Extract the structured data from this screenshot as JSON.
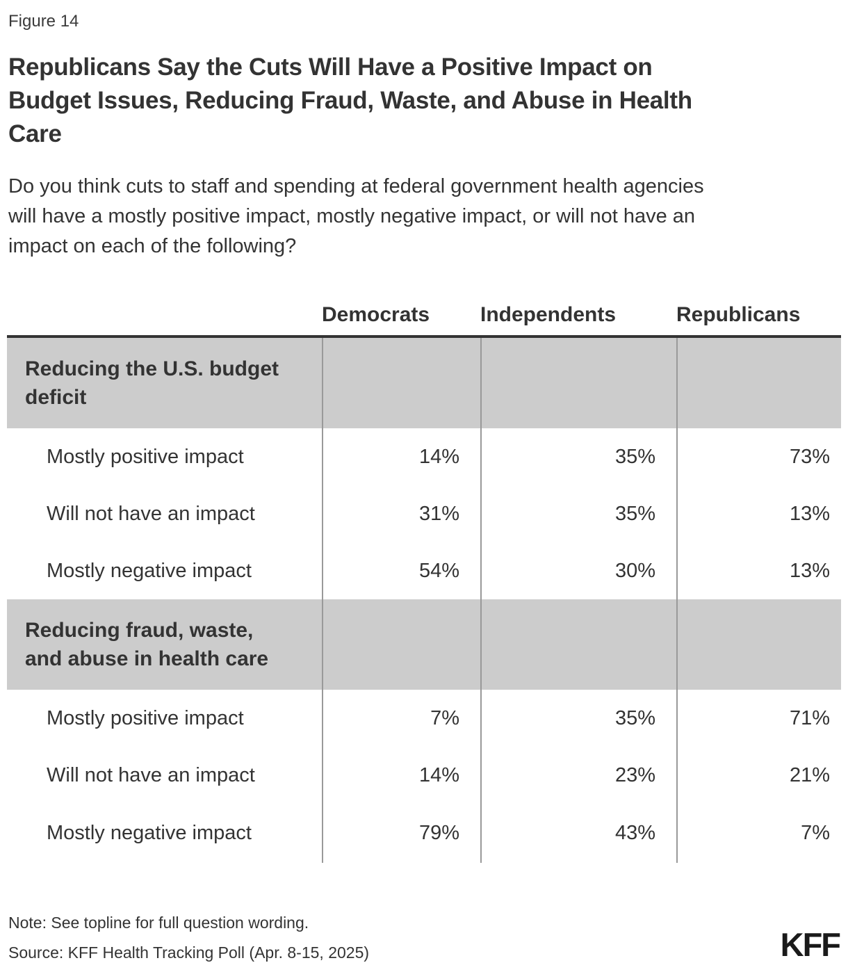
{
  "figure_label": "Figure 14",
  "title": "Republicans Say the Cuts Will Have a Positive Impact on\nBudget Issues, Reducing Fraud, Waste, and Abuse in Health\nCare",
  "subtitle": "Do you think cuts to staff and spending at federal government health agencies\nwill have a mostly positive impact, mostly negative impact, or will not have an\nimpact on each of the following?",
  "table": {
    "columns": [
      "Democrats",
      "Independents",
      "Republicans"
    ],
    "sections": [
      {
        "header": "Reducing the U.S. budget\ndeficit",
        "rows": [
          {
            "label": "Mostly positive impact",
            "values": [
              "14%",
              "35%",
              "73%"
            ]
          },
          {
            "label": "Will not have an impact",
            "values": [
              "31%",
              "35%",
              "13%"
            ]
          },
          {
            "label": "Mostly negative impact",
            "values": [
              "54%",
              "30%",
              "13%"
            ]
          }
        ]
      },
      {
        "header": "Reducing fraud, waste,\nand abuse in health care",
        "rows": [
          {
            "label": "Mostly positive impact",
            "values": [
              "7%",
              "35%",
              "71%"
            ]
          },
          {
            "label": "Will not have an impact",
            "values": [
              "14%",
              "23%",
              "21%"
            ]
          },
          {
            "label": "Mostly negative impact",
            "values": [
              "79%",
              "43%",
              "7%"
            ]
          }
        ]
      }
    ]
  },
  "note": "Note: See topline for full question wording.",
  "source": "Source: KFF Health Tracking Poll (Apr. 8-15, 2025)",
  "logo_text": "KFF",
  "colors": {
    "section_bg": "#cccccc",
    "divider": "#999999",
    "top_rule": "#333333",
    "text": "#333333",
    "logo": "#1a1a1a"
  },
  "chart_data": {
    "type": "table",
    "title": "Republicans Say the Cuts Will Have a Positive Impact on Budget Issues, Reducing Fraud, Waste, and Abuse in Health Care",
    "subtitle": "Do you think cuts to staff and spending at federal government health agencies will have a mostly positive impact, mostly negative impact, or will not have an impact on each of the following?",
    "columns": [
      "Democrats",
      "Independents",
      "Republicans"
    ],
    "sections": [
      {
        "group": "Reducing the U.S. budget deficit",
        "rows": [
          {
            "response": "Mostly positive impact",
            "values_pct": [
              14,
              35,
              73
            ]
          },
          {
            "response": "Will not have an impact",
            "values_pct": [
              31,
              35,
              13
            ]
          },
          {
            "response": "Mostly negative impact",
            "values_pct": [
              54,
              30,
              13
            ]
          }
        ]
      },
      {
        "group": "Reducing fraud, waste, and abuse in health care",
        "rows": [
          {
            "response": "Mostly positive impact",
            "values_pct": [
              7,
              35,
              71
            ]
          },
          {
            "response": "Will not have an impact",
            "values_pct": [
              14,
              23,
              21
            ]
          },
          {
            "response": "Mostly negative impact",
            "values_pct": [
              79,
              43,
              7
            ]
          }
        ]
      }
    ],
    "note": "Note: See topline for full question wording.",
    "source": "Source: KFF Health Tracking Poll (Apr. 8-15, 2025)"
  }
}
